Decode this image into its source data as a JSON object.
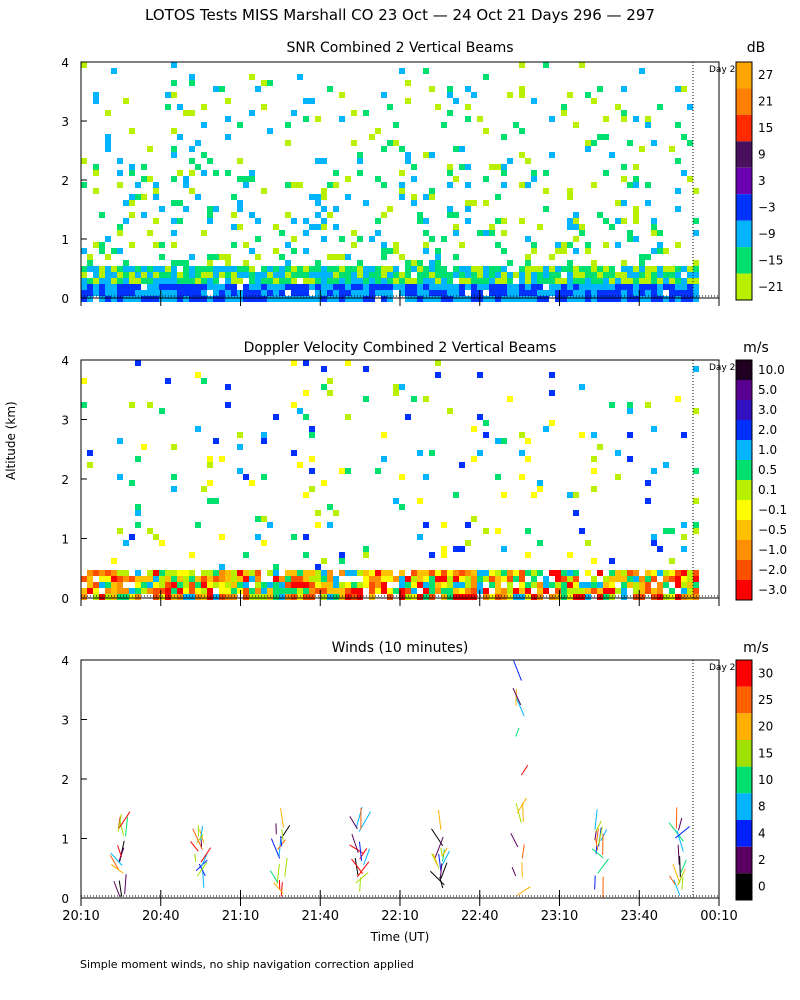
{
  "title": "LOTOS Tests MISS Marshall CO  23 Oct — 24 Oct 21 Days 296 — 297",
  "footnote": "Simple moment winds, no ship navigation correction applied",
  "ylabel": "Altitude (km)",
  "xlabel": "Time (UT)",
  "day_marker": "Day 2",
  "chart_data": [
    {
      "type": "heatmap",
      "title": "SNR Combined 2 Vertical Beams",
      "colorbar_unit": "dB",
      "colorbar_ticks": [
        "27",
        "21",
        "15",
        "9",
        "3",
        "−3",
        "−9",
        "−15",
        "−21"
      ],
      "colorbar_colors": [
        "#ffa500",
        "#ff7f00",
        "#ff2a00",
        "#4a1060",
        "#6a00b0",
        "#0033ff",
        "#00b4ff",
        "#00e070",
        "#b8f000"
      ],
      "x_ticks": [
        "20:10",
        "20:40",
        "21:10",
        "21:40",
        "22:10",
        "22:40",
        "23:10",
        "23:40",
        "00:10"
      ],
      "y_ticks": [
        "0",
        "1",
        "2",
        "3",
        "4"
      ],
      "xlim": [
        0,
        240
      ],
      "ylim": [
        0,
        4
      ]
    },
    {
      "type": "heatmap",
      "title": "Doppler Velocity Combined 2 Vertical Beams",
      "colorbar_unit": "m/s",
      "colorbar_ticks": [
        "10.0",
        "5.0",
        "3.0",
        "2.0",
        "1.0",
        "0.5",
        "0.1",
        "−0.1",
        "−0.5",
        "−1.0",
        "−2.0",
        "−3.0"
      ],
      "colorbar_colors": [
        "#200020",
        "#5a0090",
        "#3010c0",
        "#0030ff",
        "#00b4ff",
        "#00e070",
        "#b8f000",
        "#ffff00",
        "#ffc000",
        "#ff9000",
        "#ff5000",
        "#ff0000"
      ],
      "x_ticks": [
        "20:10",
        "20:40",
        "21:10",
        "21:40",
        "22:10",
        "22:40",
        "23:10",
        "23:40",
        "00:10"
      ],
      "y_ticks": [
        "0",
        "1",
        "2",
        "3",
        "4"
      ],
      "xlim": [
        0,
        240
      ],
      "ylim": [
        0,
        4
      ]
    },
    {
      "type": "scatter",
      "title": "Winds (10 minutes)",
      "colorbar_unit": "m/s",
      "colorbar_ticks": [
        "30",
        "25",
        "20",
        "15",
        "10",
        "8",
        "4",
        "2",
        "0"
      ],
      "colorbar_colors": [
        "#ff0000",
        "#ff6000",
        "#ffb000",
        "#a0e000",
        "#00e070",
        "#00b4ff",
        "#0020ff",
        "#5a0060",
        "#000000"
      ],
      "x_ticks": [
        "20:10",
        "20:40",
        "21:10",
        "21:40",
        "22:10",
        "22:40",
        "23:10",
        "23:40",
        "00:10"
      ],
      "y_ticks": [
        "0",
        "1",
        "2",
        "3",
        "4"
      ],
      "xlim": [
        0,
        240
      ],
      "ylim": [
        0,
        4
      ],
      "profiles_x_min": [
        15,
        45,
        75,
        105,
        135,
        165,
        195,
        225
      ]
    }
  ]
}
